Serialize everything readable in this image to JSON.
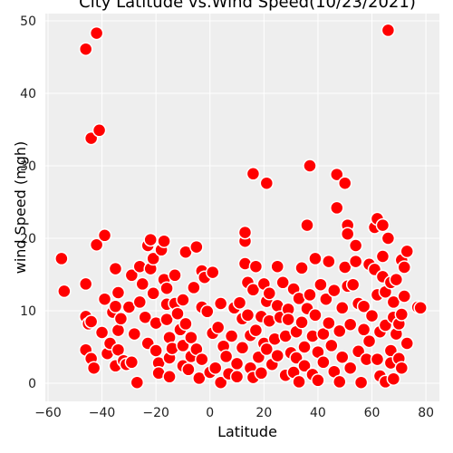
{
  "chart_data": {
    "type": "scatter",
    "title": "City Latitude vs.Wind Speed(10/23/2021)",
    "xlabel": "Latitude",
    "ylabel": "wind Speed (mgh)",
    "xlim": [
      -61,
      85
    ],
    "ylim": [
      -2.5,
      51
    ],
    "xticks": [
      -60,
      -40,
      -20,
      0,
      20,
      40,
      60,
      80
    ],
    "yticks": [
      0,
      10,
      20,
      30,
      40,
      50
    ],
    "grid": true,
    "legend": "none",
    "colors": {
      "marker_fill": "#ff0000",
      "marker_edge": "#ffffff",
      "plot_bg": "#eeeeee",
      "grid": "#ffffff"
    },
    "points": [
      [
        -55,
        17.2
      ],
      [
        -54,
        12.7
      ],
      [
        -46,
        46.1
      ],
      [
        -44,
        33.8
      ],
      [
        -42,
        48.3
      ],
      [
        -41,
        34.9
      ],
      [
        -42,
        19.1
      ],
      [
        -39,
        20.4
      ],
      [
        -46,
        13.7
      ],
      [
        -46,
        9.2
      ],
      [
        -45,
        8.2
      ],
      [
        -46,
        4.6
      ],
      [
        -44,
        3.4
      ],
      [
        -43,
        2.1
      ],
      [
        -44,
        8.5
      ],
      [
        -40,
        7.0
      ],
      [
        -39,
        11.6
      ],
      [
        -38,
        4.1
      ],
      [
        -37,
        5.5
      ],
      [
        -36,
        9.8
      ],
      [
        -35,
        15.8
      ],
      [
        -34,
        12.5
      ],
      [
        -35,
        10.6
      ],
      [
        -34,
        7.3
      ],
      [
        -35,
        2.4
      ],
      [
        -34,
        4.6
      ],
      [
        -33,
        8.9
      ],
      [
        -32,
        3.1
      ],
      [
        -31,
        2.6
      ],
      [
        -30,
        10.5
      ],
      [
        -29,
        14.9
      ],
      [
        -29,
        2.9
      ],
      [
        -28,
        6.8
      ],
      [
        -27,
        0.1
      ],
      [
        -26,
        11.2
      ],
      [
        -26,
        16.1
      ],
      [
        -25,
        13.7
      ],
      [
        -24,
        9.1
      ],
      [
        -23,
        5.5
      ],
      [
        -23,
        19.0
      ],
      [
        -22,
        15.8
      ],
      [
        -22,
        19.8
      ],
      [
        -21,
        17.2
      ],
      [
        -21,
        12.4
      ],
      [
        -20,
        8.3
      ],
      [
        -20,
        4.5
      ],
      [
        -19,
        2.8
      ],
      [
        -19,
        1.4
      ],
      [
        -18,
        18.4
      ],
      [
        -17,
        19.6
      ],
      [
        -17,
        14.3
      ],
      [
        -16,
        13.1
      ],
      [
        -16,
        10.9
      ],
      [
        -16,
        8.8
      ],
      [
        -15,
        6.3
      ],
      [
        -15,
        3.5
      ],
      [
        -15,
        0.9
      ],
      [
        -14,
        4.8
      ],
      [
        -13,
        11.0
      ],
      [
        -13,
        14.9
      ],
      [
        -12,
        9.6
      ],
      [
        -11,
        7.4
      ],
      [
        -10,
        5.2
      ],
      [
        -10,
        2.4
      ],
      [
        -10,
        11.5
      ],
      [
        -9,
        18.1
      ],
      [
        -9,
        8.2
      ],
      [
        -8,
        1.9
      ],
      [
        -7,
        3.7
      ],
      [
        -7,
        6.3
      ],
      [
        -6,
        13.2
      ],
      [
        -5,
        18.8
      ],
      [
        -5,
        4.7
      ],
      [
        -4,
        0.7
      ],
      [
        -3,
        3.3
      ],
      [
        -3,
        10.5
      ],
      [
        -3,
        15.5
      ],
      [
        -2,
        14.6
      ],
      [
        -1,
        9.9
      ],
      [
        0,
        1.5
      ],
      [
        1,
        15.3
      ],
      [
        1,
        6.9
      ],
      [
        2,
        2.1
      ],
      [
        3,
        7.7
      ],
      [
        4,
        11.0
      ],
      [
        4,
        0.1
      ],
      [
        5,
        5.1
      ],
      [
        6,
        3.7
      ],
      [
        7,
        1.3
      ],
      [
        8,
        6.5
      ],
      [
        9,
        10.4
      ],
      [
        10,
        2.7
      ],
      [
        10,
        0.9
      ],
      [
        11,
        11.1
      ],
      [
        12,
        8.9
      ],
      [
        12,
        4.9
      ],
      [
        13,
        19.6
      ],
      [
        13,
        20.8
      ],
      [
        13,
        16.5
      ],
      [
        14,
        13.9
      ],
      [
        14,
        9.4
      ],
      [
        15,
        6.6
      ],
      [
        15,
        2.1
      ],
      [
        16,
        12.9
      ],
      [
        16,
        28.9
      ],
      [
        16,
        0.8
      ],
      [
        17,
        16.1
      ],
      [
        17,
        7.3
      ],
      [
        18,
        3.6
      ],
      [
        19,
        9.2
      ],
      [
        19,
        1.4
      ],
      [
        20,
        13.7
      ],
      [
        20,
        5.5
      ],
      [
        21,
        27.6
      ],
      [
        21,
        11.3
      ],
      [
        21,
        4.7
      ],
      [
        22,
        8.6
      ],
      [
        22,
        12.4
      ],
      [
        23,
        2.6
      ],
      [
        24,
        6.1
      ],
      [
        25,
        16.1
      ],
      [
        25,
        10.7
      ],
      [
        25,
        3.8
      ],
      [
        26,
        9.1
      ],
      [
        27,
        13.9
      ],
      [
        28,
        1.1
      ],
      [
        28,
        6.5
      ],
      [
        29,
        10.2
      ],
      [
        29,
        8.8
      ],
      [
        30,
        4.2
      ],
      [
        31,
        13.0
      ],
      [
        31,
        1.5
      ],
      [
        32,
        3.5
      ],
      [
        32,
        7.1
      ],
      [
        33,
        11.7
      ],
      [
        33,
        0.2
      ],
      [
        34,
        8.4
      ],
      [
        34,
        15.9
      ],
      [
        35,
        5.0
      ],
      [
        35,
        2.4
      ],
      [
        36,
        21.8
      ],
      [
        36,
        10.3
      ],
      [
        37,
        30.0
      ],
      [
        37,
        12.2
      ],
      [
        38,
        6.5
      ],
      [
        38,
        1.2
      ],
      [
        39,
        17.2
      ],
      [
        39,
        9.4
      ],
      [
        40,
        4.3
      ],
      [
        40,
        0.4
      ],
      [
        41,
        13.6
      ],
      [
        42,
        6.8
      ],
      [
        42,
        2.9
      ],
      [
        43,
        11.6
      ],
      [
        44,
        8.3
      ],
      [
        44,
        16.8
      ],
      [
        45,
        5.2
      ],
      [
        46,
        1.6
      ],
      [
        46,
        12.8
      ],
      [
        47,
        24.2
      ],
      [
        47,
        28.8
      ],
      [
        48,
        7.2
      ],
      [
        48,
        0.2
      ],
      [
        49,
        10.4
      ],
      [
        49,
        3.6
      ],
      [
        50,
        16.0
      ],
      [
        50,
        27.6
      ],
      [
        51,
        21.8
      ],
      [
        51,
        13.4
      ],
      [
        51,
        20.6
      ],
      [
        52,
        8.1
      ],
      [
        52,
        2.1
      ],
      [
        53,
        13.6
      ],
      [
        54,
        19.0
      ],
      [
        54,
        16.8
      ],
      [
        55,
        11.0
      ],
      [
        55,
        4.4
      ],
      [
        56,
        0.1
      ],
      [
        57,
        7.4
      ],
      [
        57,
        10.6
      ],
      [
        58,
        3.3
      ],
      [
        59,
        16.4
      ],
      [
        59,
        5.8
      ],
      [
        60,
        9.3
      ],
      [
        61,
        21.5
      ],
      [
        61,
        15.7
      ],
      [
        62,
        22.7
      ],
      [
        62,
        12.2
      ],
      [
        62,
        3.3
      ],
      [
        63,
        7.1
      ],
      [
        63,
        1.0
      ],
      [
        64,
        17.5
      ],
      [
        64,
        14.7
      ],
      [
        64,
        21.8
      ],
      [
        65,
        12.6
      ],
      [
        65,
        8.0
      ],
      [
        65,
        0.2
      ],
      [
        66,
        48.7
      ],
      [
        66,
        20.0
      ],
      [
        67,
        13.9
      ],
      [
        67,
        4.5
      ],
      [
        67,
        2.8
      ],
      [
        68,
        11.2
      ],
      [
        68,
        9.1
      ],
      [
        68,
        0.6
      ],
      [
        69,
        6.8
      ],
      [
        69,
        14.3
      ],
      [
        70,
        3.4
      ],
      [
        70,
        8.2
      ],
      [
        71,
        17.0
      ],
      [
        71,
        9.5
      ],
      [
        71,
        2.1
      ],
      [
        72,
        16.0
      ],
      [
        72,
        12.0
      ],
      [
        73,
        5.5
      ],
      [
        73,
        18.2
      ],
      [
        77,
        10.5
      ],
      [
        78,
        10.4
      ]
    ]
  }
}
